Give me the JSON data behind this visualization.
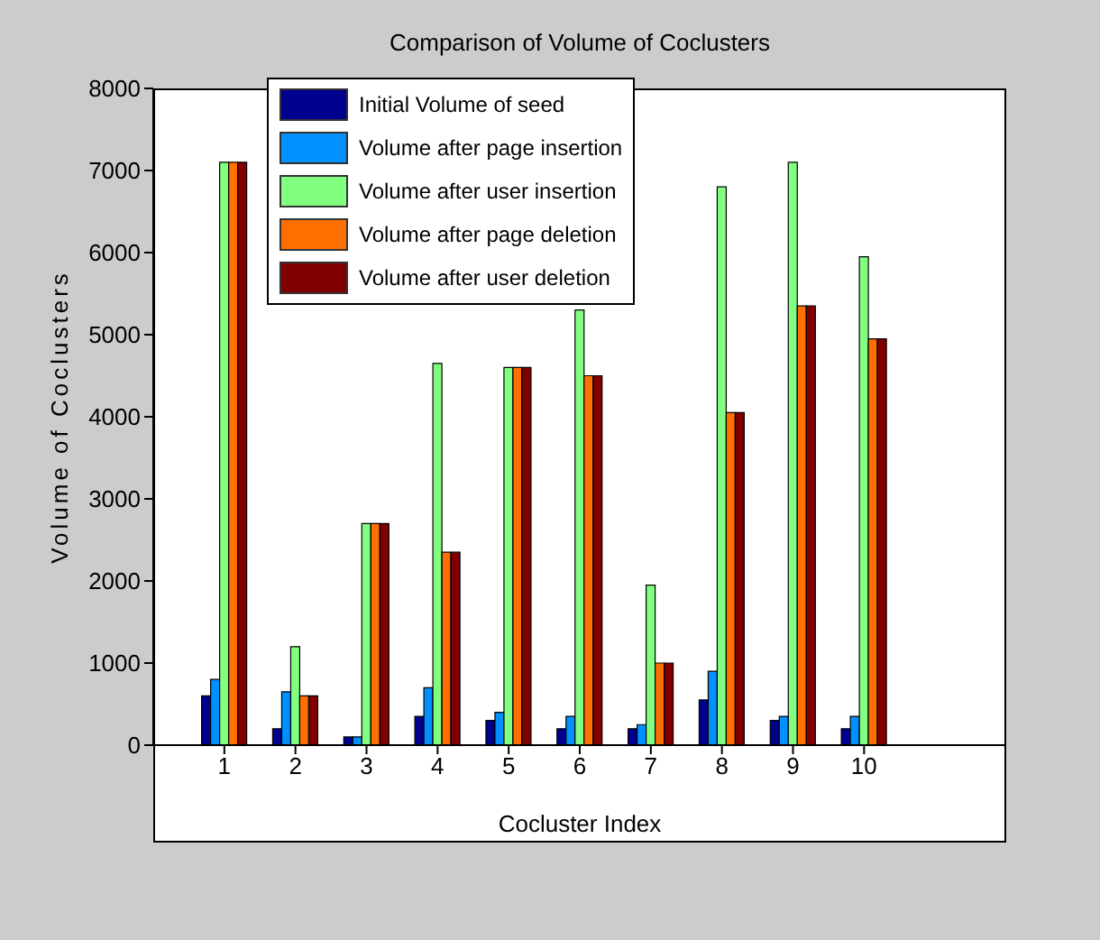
{
  "chart_data": {
    "type": "bar",
    "title": "Comparison of Volume of Coclusters",
    "xlabel": "Cocluster Index",
    "ylabel": "Volume of Coclusters",
    "x": [
      1,
      2,
      3,
      4,
      5,
      6,
      7,
      8,
      9,
      10
    ],
    "xlim": [
      0,
      12
    ],
    "xticks": [
      1,
      2,
      3,
      4,
      5,
      6,
      7,
      8,
      9,
      10
    ],
    "ylim": [
      0,
      8000
    ],
    "yticks": [
      0,
      1000,
      2000,
      3000,
      4000,
      5000,
      6000,
      7000,
      8000
    ],
    "series": [
      {
        "name": "Initial Volume of seed",
        "color": "#00008f",
        "values": [
          600,
          200,
          100,
          350,
          300,
          200,
          200,
          550,
          300,
          200
        ]
      },
      {
        "name": "Volume after page insertion",
        "color": "#0090ff",
        "values": [
          800,
          650,
          100,
          700,
          400,
          350,
          250,
          900,
          350,
          350
        ]
      },
      {
        "name": "Volume after user insertion",
        "color": "#80ff80",
        "values": [
          7100,
          1200,
          2700,
          4650,
          4600,
          5300,
          1950,
          6800,
          7100,
          5950
        ]
      },
      {
        "name": "Volume after page deletion",
        "color": "#ff7000",
        "values": [
          7100,
          600,
          2700,
          2350,
          4600,
          4500,
          1000,
          4050,
          5350,
          4950
        ]
      },
      {
        "name": "Volume after user deletion",
        "color": "#800000",
        "values": [
          7100,
          600,
          2700,
          2350,
          4600,
          4500,
          1000,
          4050,
          5350,
          4950
        ]
      }
    ],
    "legend": "top"
  }
}
